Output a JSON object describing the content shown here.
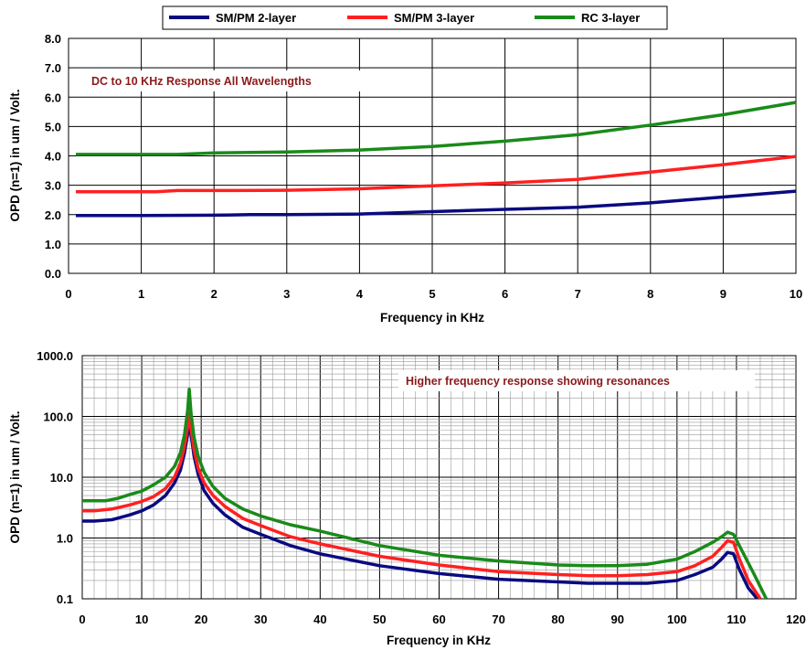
{
  "legend": {
    "position": "top-center",
    "entries": [
      {
        "name": "SM/PM 2-layer",
        "color": "#0a0a80"
      },
      {
        "name": "SM/PM 3-layer",
        "color": "#ff2020"
      },
      {
        "name": "RC 3-layer",
        "color": "#1a8a1a"
      }
    ]
  },
  "chart_data": [
    {
      "type": "line",
      "annotation": "DC to 10 KHz Response All Wavelengths",
      "xlabel": "Frequency in KHz",
      "ylabel": "OPD (n=1) in um / Volt.",
      "xlim": [
        0,
        10
      ],
      "ylim": [
        0,
        8
      ],
      "x_ticks": [
        "0",
        "1",
        "2",
        "3",
        "4",
        "5",
        "6",
        "7",
        "8",
        "9",
        "10"
      ],
      "y_ticks": [
        "0.0",
        "1.0",
        "2.0",
        "3.0",
        "4.0",
        "5.0",
        "6.0",
        "7.0",
        "8.0"
      ],
      "grid": true,
      "series": [
        {
          "name": "SM/PM 2-layer",
          "color": "#0a0a80",
          "x": [
            0.1,
            1,
            2,
            2.5,
            3,
            4,
            5,
            6,
            7,
            8,
            9,
            10
          ],
          "y": [
            1.97,
            1.97,
            1.98,
            2.0,
            2.0,
            2.02,
            2.1,
            2.18,
            2.25,
            2.4,
            2.6,
            2.8
          ]
        },
        {
          "name": "SM/PM 3-layer",
          "color": "#ff2020",
          "x": [
            0.1,
            1.2,
            1.5,
            2,
            3,
            4,
            5,
            6,
            7,
            8,
            9,
            10
          ],
          "y": [
            2.78,
            2.78,
            2.82,
            2.82,
            2.83,
            2.88,
            2.98,
            3.08,
            3.2,
            3.45,
            3.7,
            3.98
          ]
        },
        {
          "name": "RC 3-layer",
          "color": "#1a8a1a",
          "x": [
            0.1,
            1,
            1.5,
            2,
            3,
            4,
            5,
            6,
            7,
            8,
            9,
            10
          ],
          "y": [
            4.05,
            4.05,
            4.05,
            4.1,
            4.13,
            4.2,
            4.32,
            4.5,
            4.72,
            5.05,
            5.4,
            5.82
          ]
        }
      ]
    },
    {
      "type": "line",
      "annotation": "Higher frequency response showing resonances",
      "xlabel": "Frequency in KHz",
      "ylabel": "OPD (n=1) in um / Volt.",
      "xlim": [
        0,
        120
      ],
      "ylim": [
        0.1,
        1000
      ],
      "yscale": "log",
      "x_ticks": [
        "0",
        "10",
        "20",
        "30",
        "40",
        "50",
        "60",
        "70",
        "80",
        "90",
        "100",
        "110",
        "120"
      ],
      "y_ticks": [
        "0.1",
        "1.0",
        "10.0",
        "100.0",
        "1000.0"
      ],
      "grid": true,
      "series": [
        {
          "name": "SM/PM 2-layer",
          "color": "#0a0a80",
          "x": [
            0,
            2,
            5,
            8,
            10,
            12,
            14,
            15.5,
            16.5,
            17.2,
            17.7,
            18,
            18.3,
            18.8,
            19.5,
            20.5,
            22,
            24,
            27,
            30,
            35,
            40,
            50,
            60,
            70,
            80,
            85,
            90,
            95,
            100,
            103,
            106,
            107.5,
            108.5,
            109.5,
            110.5,
            112,
            113.5
          ],
          "y": [
            1.9,
            1.9,
            2.0,
            2.4,
            2.8,
            3.5,
            5,
            8,
            13,
            25,
            50,
            90,
            50,
            22,
            11,
            6,
            3.7,
            2.4,
            1.5,
            1.15,
            0.75,
            0.55,
            0.35,
            0.26,
            0.21,
            0.19,
            0.18,
            0.18,
            0.18,
            0.2,
            0.25,
            0.33,
            0.45,
            0.58,
            0.55,
            0.3,
            0.15,
            0.1
          ]
        },
        {
          "name": "SM/PM 3-layer",
          "color": "#ff2020",
          "x": [
            0,
            2,
            5,
            8,
            10,
            12,
            14,
            15.5,
            16.5,
            17.2,
            17.7,
            18,
            18.3,
            18.8,
            19.5,
            20.5,
            22,
            24,
            27,
            30,
            35,
            40,
            50,
            60,
            70,
            80,
            85,
            90,
            95,
            100,
            103,
            106,
            107.5,
            108.5,
            109.5,
            110.5,
            112,
            114
          ],
          "y": [
            2.8,
            2.8,
            3.0,
            3.5,
            4.0,
            4.8,
            6.5,
            10,
            17,
            32,
            65,
            110,
            62,
            28,
            14,
            8,
            5,
            3.3,
            2.1,
            1.6,
            1.05,
            0.8,
            0.5,
            0.36,
            0.28,
            0.25,
            0.24,
            0.24,
            0.25,
            0.28,
            0.35,
            0.5,
            0.7,
            0.9,
            0.85,
            0.45,
            0.2,
            0.1
          ]
        },
        {
          "name": "RC 3-layer",
          "color": "#1a8a1a",
          "x": [
            0,
            2,
            4,
            6,
            8,
            10,
            12,
            14,
            15.5,
            16.5,
            17.2,
            17.7,
            18,
            18.3,
            18.8,
            19.5,
            20.5,
            22,
            24,
            27,
            30,
            35,
            40,
            50,
            60,
            70,
            80,
            85,
            90,
            95,
            100,
            103,
            106,
            107.5,
            108.5,
            109.5,
            111,
            113,
            115
          ],
          "y": [
            4.1,
            4.1,
            4.1,
            4.5,
            5.2,
            5.9,
            7.5,
            10,
            15,
            25,
            50,
            120,
            280,
            110,
            45,
            22,
            12,
            7,
            4.5,
            3.0,
            2.3,
            1.65,
            1.3,
            0.75,
            0.52,
            0.42,
            0.36,
            0.35,
            0.35,
            0.37,
            0.45,
            0.6,
            0.85,
            1.05,
            1.25,
            1.15,
            0.6,
            0.25,
            0.1
          ]
        }
      ]
    }
  ]
}
